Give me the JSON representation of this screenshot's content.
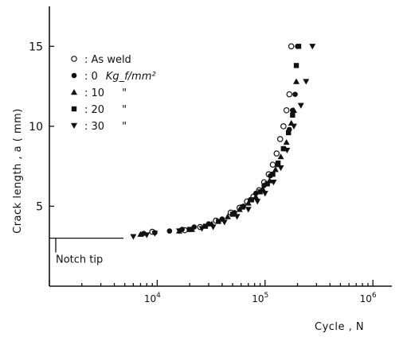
{
  "chart_data": {
    "type": "scatter",
    "xscale": "log",
    "xlim": [
      1000,
      1500000
    ],
    "ylim": [
      0,
      17.5
    ],
    "xlabel": "Cycle , N",
    "ylabel": "Crack length , a ( mm)",
    "x_ticks": [
      {
        "value": 10000,
        "base": "10",
        "exp": "4"
      },
      {
        "value": 100000,
        "base": "10",
        "exp": "5"
      },
      {
        "value": 1000000,
        "base": "10",
        "exp": "6"
      }
    ],
    "y_ticks": [
      {
        "value": 5,
        "label": "5"
      },
      {
        "value": 10,
        "label": "10"
      },
      {
        "value": 15,
        "label": "15"
      }
    ],
    "legend_position": "top-left",
    "annotation": {
      "label": "Notch tip",
      "y": 3.0
    },
    "series": [
      {
        "name": "As weld",
        "unit": "",
        "marker": "circle-open",
        "points": [
          [
            9000,
            3.4
          ],
          [
            18000,
            3.5
          ],
          [
            25000,
            3.7
          ],
          [
            35000,
            4.1
          ],
          [
            48000,
            4.6
          ],
          [
            58000,
            4.9
          ],
          [
            68000,
            5.3
          ],
          [
            78000,
            5.6
          ],
          [
            88000,
            6.0
          ],
          [
            98000,
            6.5
          ],
          [
            108000,
            7.0
          ],
          [
            118000,
            7.6
          ],
          [
            128000,
            8.3
          ],
          [
            138000,
            9.2
          ],
          [
            148000,
            10.0
          ],
          [
            158000,
            11.0
          ],
          [
            168000,
            12.0
          ],
          [
            175000,
            15.0
          ]
        ]
      },
      {
        "name": "0",
        "unit": "Kg_f/mm²",
        "marker": "circle-filled",
        "points": [
          [
            7500,
            3.3
          ],
          [
            9500,
            3.35
          ],
          [
            13000,
            3.45
          ],
          [
            17000,
            3.55
          ],
          [
            22000,
            3.7
          ],
          [
            30000,
            3.9
          ],
          [
            40000,
            4.2
          ],
          [
            52000,
            4.6
          ],
          [
            63000,
            5.0
          ],
          [
            73000,
            5.4
          ],
          [
            82000,
            5.8
          ],
          [
            98000,
            6.3
          ],
          [
            112000,
            6.9
          ],
          [
            130000,
            7.6
          ],
          [
            150000,
            8.6
          ],
          [
            168000,
            9.8
          ],
          [
            180000,
            11.0
          ],
          [
            190000,
            12.0
          ],
          [
            200000,
            15.0
          ]
        ]
      },
      {
        "name": "10",
        "unit": "\"",
        "marker": "triangle-up",
        "points": [
          [
            7000,
            3.25
          ],
          [
            16000,
            3.45
          ],
          [
            21000,
            3.55
          ],
          [
            32000,
            3.9
          ],
          [
            45000,
            4.35
          ],
          [
            58000,
            4.8
          ],
          [
            70000,
            5.2
          ],
          [
            82000,
            5.6
          ],
          [
            95000,
            6.1
          ],
          [
            110000,
            6.6
          ],
          [
            125000,
            7.3
          ],
          [
            140000,
            8.1
          ],
          [
            158000,
            9.0
          ],
          [
            175000,
            10.2
          ],
          [
            185000,
            11.0
          ],
          [
            195000,
            12.8
          ]
        ]
      },
      {
        "name": "20",
        "unit": "\"",
        "marker": "square-filled",
        "points": [
          [
            20000,
            3.55
          ],
          [
            28000,
            3.75
          ],
          [
            37000,
            4.05
          ],
          [
            50000,
            4.5
          ],
          [
            62000,
            4.95
          ],
          [
            75000,
            5.4
          ],
          [
            90000,
            5.9
          ],
          [
            105000,
            6.4
          ],
          [
            118000,
            7.0
          ],
          [
            132000,
            7.7
          ],
          [
            148000,
            8.6
          ],
          [
            165000,
            9.6
          ],
          [
            180000,
            10.7
          ],
          [
            195000,
            13.8
          ],
          [
            205000,
            15.0
          ]
        ]
      },
      {
        "name": "30",
        "unit": "\"",
        "marker": "triangle-down",
        "points": [
          [
            6000,
            3.1
          ],
          [
            8000,
            3.2
          ],
          [
            9500,
            3.3
          ],
          [
            16000,
            3.45
          ],
          [
            26000,
            3.6
          ],
          [
            33000,
            3.7
          ],
          [
            42000,
            4.0
          ],
          [
            55000,
            4.35
          ],
          [
            70000,
            4.8
          ],
          [
            85000,
            5.3
          ],
          [
            100000,
            5.8
          ],
          [
            120000,
            6.5
          ],
          [
            140000,
            7.4
          ],
          [
            160000,
            8.5
          ],
          [
            185000,
            10.0
          ],
          [
            215000,
            11.3
          ],
          [
            240000,
            12.8
          ],
          [
            275000,
            15.0
          ]
        ]
      }
    ]
  }
}
